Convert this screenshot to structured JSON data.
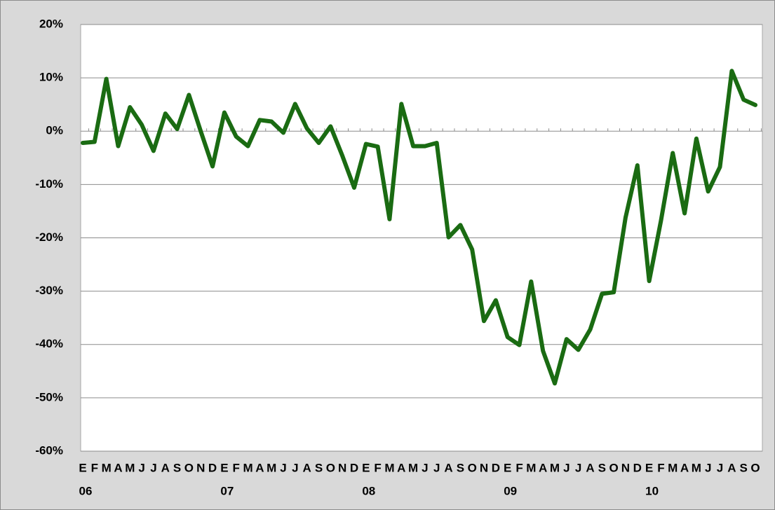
{
  "chart_data": {
    "type": "line",
    "categories": [
      "E",
      "F",
      "M",
      "A",
      "M",
      "J",
      "J",
      "A",
      "S",
      "O",
      "N",
      "D",
      "E",
      "F",
      "M",
      "A",
      "M",
      "J",
      "J",
      "A",
      "S",
      "O",
      "N",
      "D",
      "E",
      "F",
      "M",
      "A",
      "M",
      "J",
      "J",
      "A",
      "S",
      "O",
      "N",
      "D",
      "E",
      "F",
      "M",
      "A",
      "M",
      "J",
      "J",
      "A",
      "S",
      "O",
      "N",
      "D",
      "E",
      "F",
      "M",
      "A",
      "M",
      "J",
      "J",
      "A",
      "S",
      "O"
    ],
    "year_labels": [
      "06",
      "07",
      "08",
      "09",
      "10"
    ],
    "values": [
      -2.2,
      -2,
      9.8,
      -2.8,
      4.5,
      1.2,
      -3.7,
      3.3,
      0.4,
      6.8,
      0,
      -6.6,
      3.5,
      -1,
      -2.8,
      2.1,
      1.8,
      -0.3,
      5.1,
      0.5,
      -2.2,
      0.9,
      -4.6,
      -10.6,
      -2.4,
      -2.9,
      -16.5,
      5.1,
      -2.8,
      -2.8,
      -2.2,
      -19.9,
      -17.6,
      -22.2,
      -35.6,
      -31.7,
      -38.6,
      -40.1,
      -28.2,
      -41.2,
      -47.3,
      -39,
      -41,
      -37.2,
      -30.5,
      -30.2,
      -16.2,
      -6.4,
      -28.1,
      -16.8,
      -4.1,
      -15.4,
      -1.4,
      -11.3,
      -6.7,
      11.3,
      5.9,
      4.9
    ],
    "color": "#1a6b12",
    "ylim": [
      -60,
      20
    ],
    "yticks": [
      {
        "value": -60,
        "label": "-60%"
      },
      {
        "value": -50,
        "label": "-50%"
      },
      {
        "value": -40,
        "label": "-40%"
      },
      {
        "value": -30,
        "label": "-30%"
      },
      {
        "value": -20,
        "label": "-20%"
      },
      {
        "value": -10,
        "label": "-10%"
      },
      {
        "value": 0,
        "label": "0%"
      },
      {
        "value": 10,
        "label": "10%"
      },
      {
        "value": 20,
        "label": "20%"
      }
    ],
    "grid": true
  }
}
